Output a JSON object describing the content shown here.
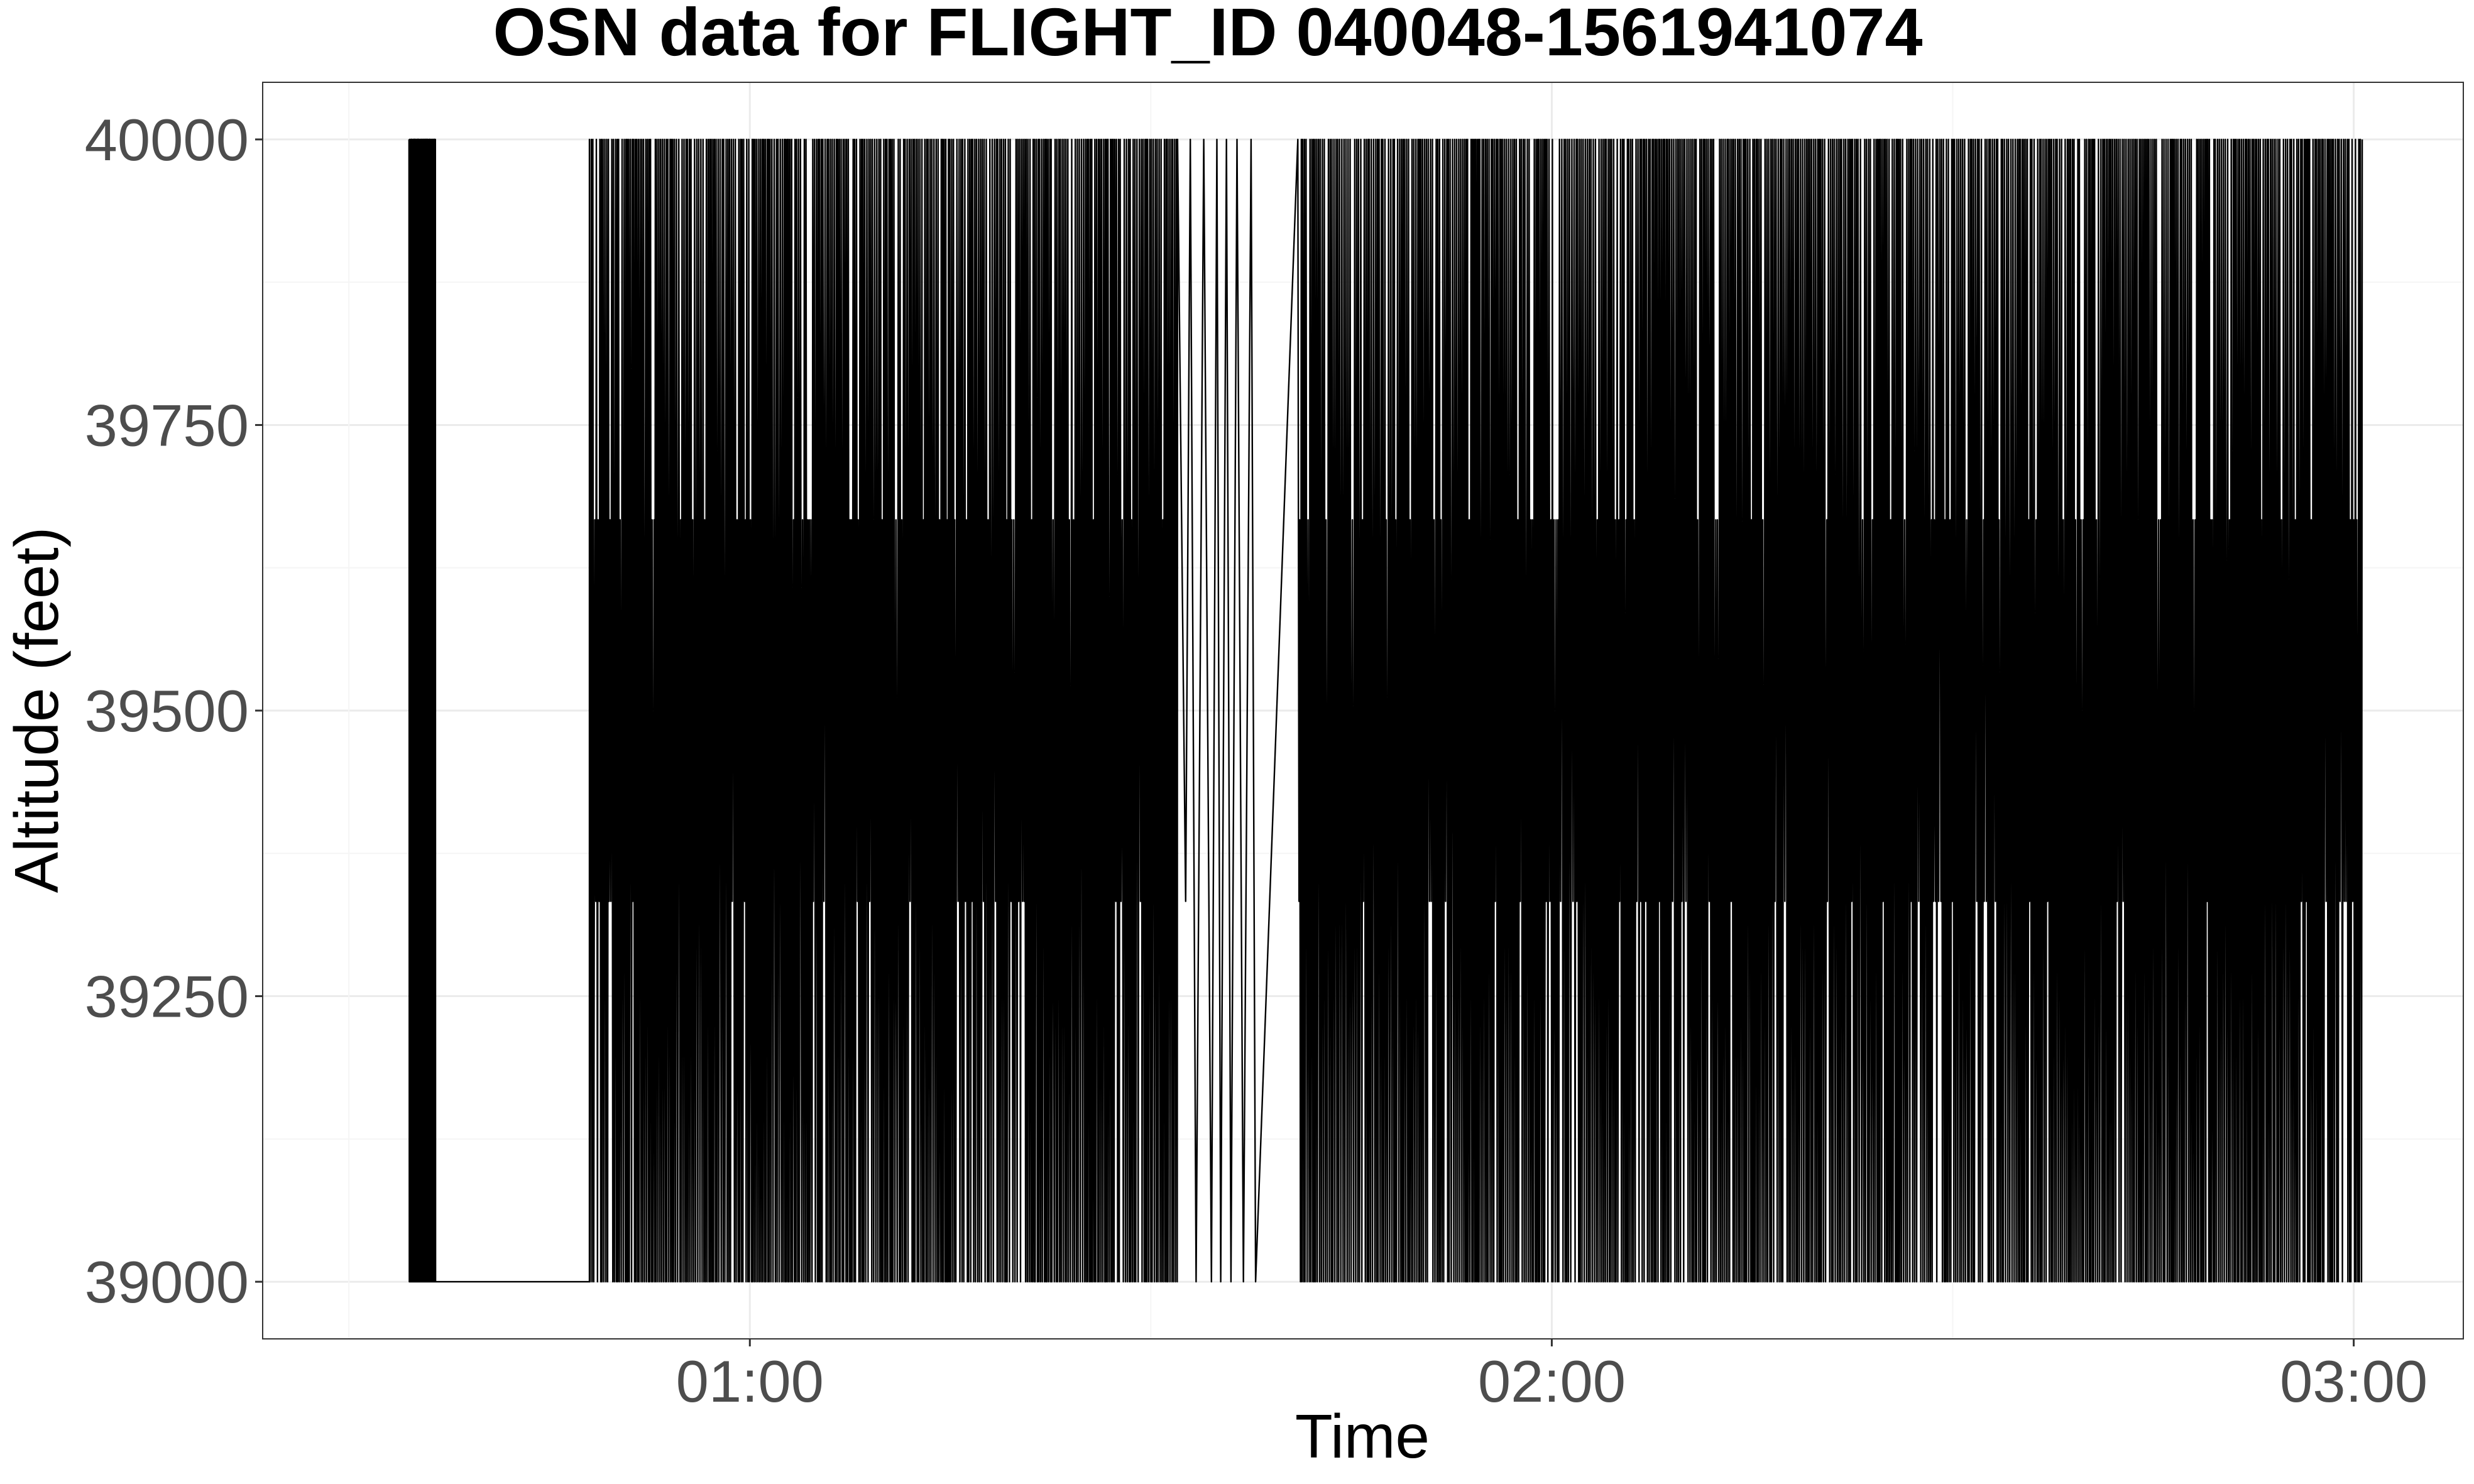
{
  "chart_data": {
    "type": "line",
    "title": "OSN data for FLIGHT_ID 040048-1561941074",
    "xlabel": "Time",
    "ylabel": "Altitude (feet)",
    "x_ticks": [
      "01:00",
      "02:00",
      "03:00"
    ],
    "y_ticks": [
      39000,
      39250,
      39500,
      39750,
      40000
    ],
    "xlim": [
      "00:23:33",
      "03:08:12"
    ],
    "ylim": [
      38950,
      40050
    ],
    "grid": true,
    "legend": "none",
    "colors": {
      "series": "#000000",
      "grid": "#ebebeb",
      "tick_label": "#4d4d4d"
    },
    "series": [
      {
        "segments": [
          {
            "time_start": "00:34:30",
            "time_end": "00:36:30",
            "altitude_min": 39000,
            "altitude_max": 40000,
            "density": "very high"
          },
          {
            "time_start": "00:36:30",
            "time_end": "00:48:00",
            "altitude_from": 40000,
            "altitude_to": 39000,
            "density": "single descent"
          },
          {
            "time_start": "00:48:00",
            "time_end": "01:32:00",
            "altitude_min": 39000,
            "altitude_max": 40000,
            "density": "high"
          },
          {
            "time_start": "01:32:00",
            "time_end": "01:38:00",
            "altitude_min": 39000,
            "altitude_max": 40000,
            "density": "low"
          },
          {
            "time_start": "01:38:00",
            "time_end": "01:41:00",
            "altitude_from": 39000,
            "altitude_to": 40000,
            "density": "single climb"
          },
          {
            "time_start": "01:41:00",
            "time_end": "03:00:40",
            "altitude_min": 39000,
            "altitude_max": 40000,
            "density": "high"
          }
        ]
      }
    ]
  }
}
